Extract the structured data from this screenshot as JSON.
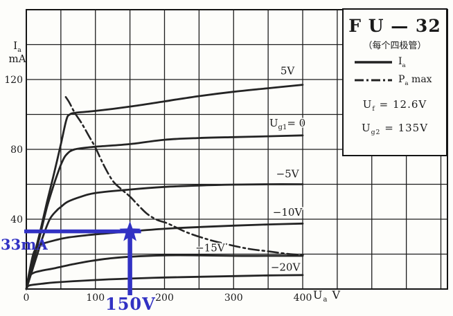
{
  "legend_box": {
    "title": "F U — 32",
    "subtitle": "（每个四极管）",
    "items": [
      {
        "id": "ia",
        "line_style": "solid",
        "label_parts": [
          {
            "t": "I"
          },
          {
            "t": "a",
            "sub": true
          }
        ]
      },
      {
        "id": "pa-max",
        "line_style": "dash-dot",
        "label_parts": [
          {
            "t": "P"
          },
          {
            "t": "a",
            "sub": true
          },
          {
            "t": " max"
          }
        ]
      }
    ],
    "params": [
      {
        "id": "uf",
        "parts": [
          {
            "t": "U"
          },
          {
            "t": "f",
            "sub": true
          },
          {
            "t": " = 12.6V"
          }
        ]
      },
      {
        "id": "ug2",
        "parts": [
          {
            "t": "U"
          },
          {
            "t": "g2",
            "sub": true
          },
          {
            "t": " = 135V"
          }
        ]
      }
    ]
  },
  "axes": {
    "y_title_parts": [
      {
        "t": "I"
      },
      {
        "t": "a",
        "sub": true
      }
    ],
    "y_unit": "mA",
    "x_unit_parts": [
      {
        "t": "U"
      },
      {
        "t": "a",
        "sub": true
      },
      {
        "t": " V"
      }
    ]
  },
  "annotation": {
    "h_label": "33mA",
    "v_label": "150V",
    "Ua": 150,
    "Ia": 33,
    "color": "#3232c3"
  },
  "chart_data": {
    "type": "line",
    "title": "FU—32（每个四极管）",
    "xlabel": "Ua V",
    "ylabel": "Ia mA",
    "xlim": [
      0,
      400
    ],
    "ylim": [
      0,
      160
    ],
    "x_ticks": [
      0,
      100,
      200,
      300,
      400
    ],
    "y_ticks": [
      0,
      40,
      80,
      120
    ],
    "x_grid_step": 50,
    "y_grid_step": 20,
    "grid": true,
    "legend_position": "top-right",
    "conditions": {
      "Uf": "12.6V",
      "Ug2": "135V"
    },
    "annotation_point": {
      "Ua": 150,
      "Ia": 33
    },
    "series": [
      {
        "id": "ug1-plus5",
        "name": "Ug1 = 5V",
        "style": "solid",
        "label_parts": [
          {
            "t": "5V"
          }
        ],
        "label_pos": [
          378,
          125
        ],
        "points": [
          [
            0,
            0
          ],
          [
            10,
            17
          ],
          [
            20,
            33
          ],
          [
            30,
            50
          ],
          [
            40,
            66
          ],
          [
            50,
            83
          ],
          [
            58,
            97
          ],
          [
            63,
            100
          ],
          [
            72,
            101
          ],
          [
            100,
            102
          ],
          [
            150,
            104.5
          ],
          [
            200,
            107.5
          ],
          [
            250,
            110.5
          ],
          [
            300,
            113
          ],
          [
            350,
            115
          ],
          [
            400,
            117
          ]
        ]
      },
      {
        "id": "ug1-0",
        "name": "Ug1 = 0",
        "style": "solid",
        "label_parts": [
          {
            "t": "U"
          },
          {
            "t": "g1",
            "sub": true
          },
          {
            "t": "= 0"
          }
        ],
        "label_pos": [
          378,
          95
        ],
        "points": [
          [
            0,
            0
          ],
          [
            10,
            15
          ],
          [
            20,
            31
          ],
          [
            30,
            47
          ],
          [
            40,
            60
          ],
          [
            47,
            68
          ],
          [
            52,
            73
          ],
          [
            58,
            77
          ],
          [
            70,
            80
          ],
          [
            100,
            81.5
          ],
          [
            150,
            83
          ],
          [
            200,
            85.5
          ],
          [
            250,
            86.5
          ],
          [
            300,
            87
          ],
          [
            350,
            87.5
          ],
          [
            400,
            88
          ]
        ]
      },
      {
        "id": "ug1-minus5",
        "name": "Ug1 = −5V",
        "style": "solid",
        "label_parts": [
          {
            "t": "−5V"
          }
        ],
        "label_pos": [
          378,
          66
        ],
        "points": [
          [
            0,
            0
          ],
          [
            8,
            10
          ],
          [
            16,
            20
          ],
          [
            24,
            30
          ],
          [
            34,
            40
          ],
          [
            44,
            45
          ],
          [
            50,
            47
          ],
          [
            60,
            50
          ],
          [
            80,
            53
          ],
          [
            100,
            55
          ],
          [
            150,
            57
          ],
          [
            200,
            58.5
          ],
          [
            250,
            59.3
          ],
          [
            300,
            59.8
          ],
          [
            350,
            60
          ],
          [
            400,
            60
          ]
        ]
      },
      {
        "id": "ug1-minus10",
        "name": "Ug1 = −10V",
        "style": "solid",
        "label_parts": [
          {
            "t": "−10V"
          }
        ],
        "label_pos": [
          378,
          44
        ],
        "points": [
          [
            0,
            0
          ],
          [
            4,
            9
          ],
          [
            10,
            20
          ],
          [
            16,
            24
          ],
          [
            24,
            26
          ],
          [
            42,
            28
          ],
          [
            60,
            29.5
          ],
          [
            92,
            31
          ],
          [
            120,
            32
          ],
          [
            150,
            33
          ],
          [
            200,
            34.5
          ],
          [
            250,
            35.5
          ],
          [
            300,
            36.3
          ],
          [
            350,
            37
          ],
          [
            400,
            37.5
          ]
        ]
      },
      {
        "id": "ug1-minus15",
        "name": "Ug1 = −15V",
        "style": "solid",
        "label_parts": [
          {
            "t": "−15V"
          }
        ],
        "label_pos": [
          266,
          23.5
        ],
        "points": [
          [
            0,
            0
          ],
          [
            3,
            5
          ],
          [
            6,
            8
          ],
          [
            12,
            9.5
          ],
          [
            22,
            10.5
          ],
          [
            42,
            12
          ],
          [
            65,
            14
          ],
          [
            92,
            16
          ],
          [
            120,
            17.5
          ],
          [
            150,
            18.5
          ],
          [
            200,
            19.3
          ],
          [
            250,
            19.3
          ],
          [
            300,
            19
          ],
          [
            350,
            19
          ],
          [
            400,
            19
          ]
        ]
      },
      {
        "id": "ug1-minus20",
        "name": "Ug1 = −20V",
        "style": "solid",
        "label_parts": [
          {
            "t": "−20V"
          }
        ],
        "label_pos": [
          375,
          12.5
        ],
        "points": [
          [
            0,
            0
          ],
          [
            2,
            1.5
          ],
          [
            6,
            2.2
          ],
          [
            22,
            3
          ],
          [
            42,
            3.8
          ],
          [
            92,
            5
          ],
          [
            150,
            6
          ],
          [
            200,
            6.6
          ],
          [
            250,
            7
          ],
          [
            300,
            7.4
          ],
          [
            350,
            7.8
          ],
          [
            400,
            8
          ]
        ]
      },
      {
        "id": "pa-max",
        "name": "Pa max",
        "style": "dashdot",
        "label_parts": [],
        "label_pos": null,
        "points": [
          [
            57,
            110
          ],
          [
            62,
            107
          ],
          [
            70,
            101
          ],
          [
            80,
            95
          ],
          [
            90,
            88
          ],
          [
            100,
            81
          ],
          [
            112,
            71
          ],
          [
            125,
            62
          ],
          [
            138,
            57
          ],
          [
            150,
            53
          ],
          [
            162,
            48
          ],
          [
            175,
            43
          ],
          [
            190,
            39.5
          ],
          [
            205,
            37.5
          ],
          [
            232,
            32.5
          ],
          [
            262,
            28.5
          ],
          [
            292,
            25.5
          ],
          [
            322,
            23
          ],
          [
            352,
            21.5
          ],
          [
            382,
            20
          ],
          [
            403,
            19.5
          ]
        ]
      }
    ]
  }
}
